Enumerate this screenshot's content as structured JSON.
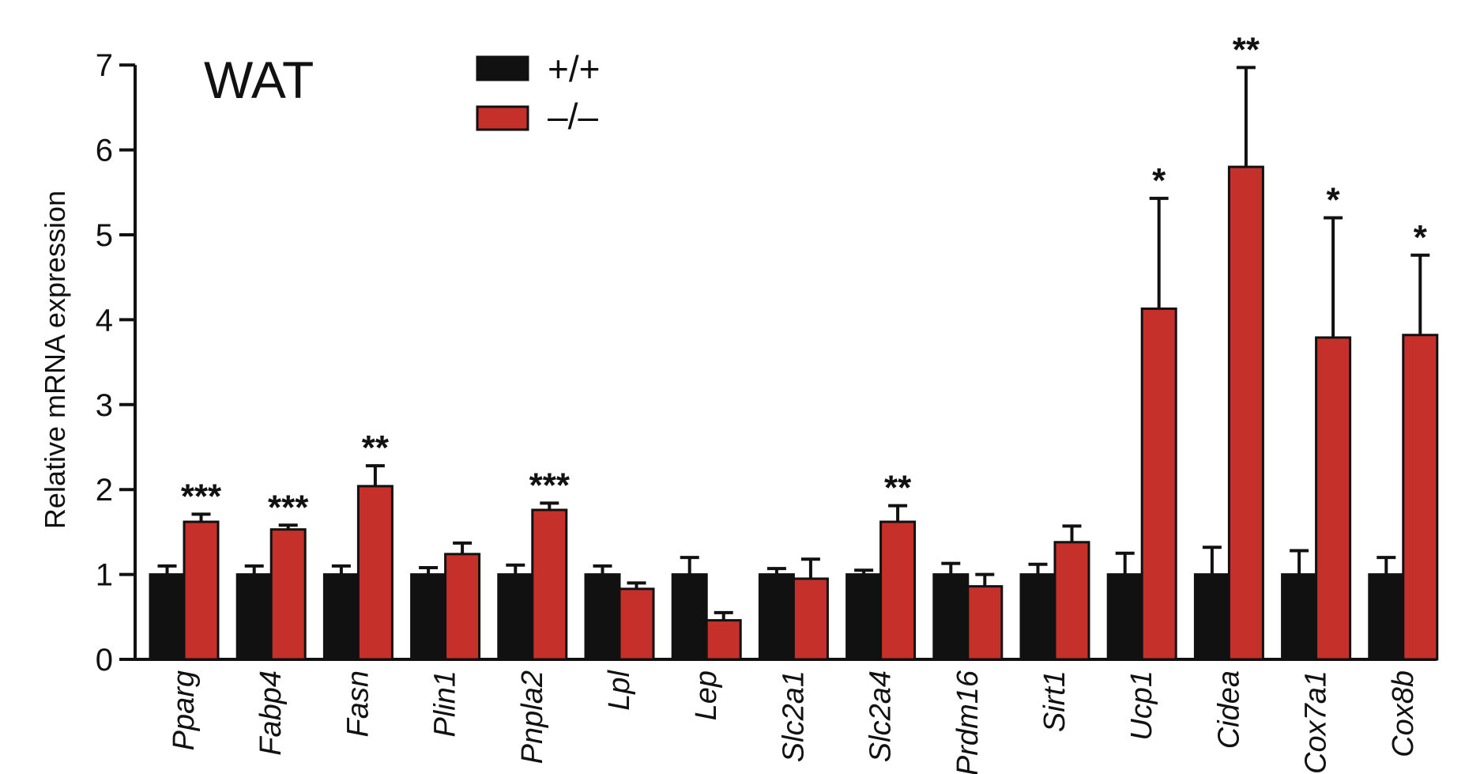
{
  "chart_data": {
    "type": "bar",
    "title": "WAT",
    "ylabel": "Relative mRNA expression",
    "xlabel": "",
    "ylim": [
      0,
      7
    ],
    "yticks": [
      0,
      1,
      2,
      3,
      4,
      5,
      6,
      7
    ],
    "categories": [
      "Pparg",
      "Fabp4",
      "Fasn",
      "Plin1",
      "Pnpla2",
      "Lpl",
      "Lep",
      "Slc2a1",
      "Slc2a4",
      "Prdm16",
      "Sirt1",
      "Ucp1",
      "Cidea",
      "Cox7a1",
      "Cox8b"
    ],
    "series": [
      {
        "name": "+/+",
        "color": "#111111",
        "values": [
          1.0,
          1.0,
          1.0,
          1.0,
          1.0,
          1.0,
          1.0,
          1.0,
          1.0,
          1.0,
          1.0,
          1.0,
          1.0,
          1.0,
          1.0
        ],
        "errors": [
          0.1,
          0.1,
          0.1,
          0.08,
          0.11,
          0.1,
          0.2,
          0.07,
          0.05,
          0.13,
          0.12,
          0.25,
          0.32,
          0.28,
          0.2
        ]
      },
      {
        "name": "–/–",
        "color": "#c6302b",
        "values": [
          1.62,
          1.53,
          2.04,
          1.24,
          1.76,
          0.83,
          0.46,
          0.95,
          1.62,
          0.86,
          1.38,
          4.13,
          5.8,
          3.79,
          3.82
        ],
        "errors": [
          0.09,
          0.05,
          0.24,
          0.13,
          0.08,
          0.07,
          0.09,
          0.23,
          0.19,
          0.14,
          0.19,
          1.3,
          1.17,
          1.41,
          0.94
        ]
      }
    ],
    "significance": [
      "***",
      "***",
      "**",
      "",
      "***",
      "",
      "",
      "",
      "**",
      "",
      "",
      "*",
      "**",
      "*",
      "*"
    ],
    "legend": {
      "placement": "top-left",
      "entries": [
        "+/+",
        "–/–"
      ]
    },
    "grid": false
  }
}
